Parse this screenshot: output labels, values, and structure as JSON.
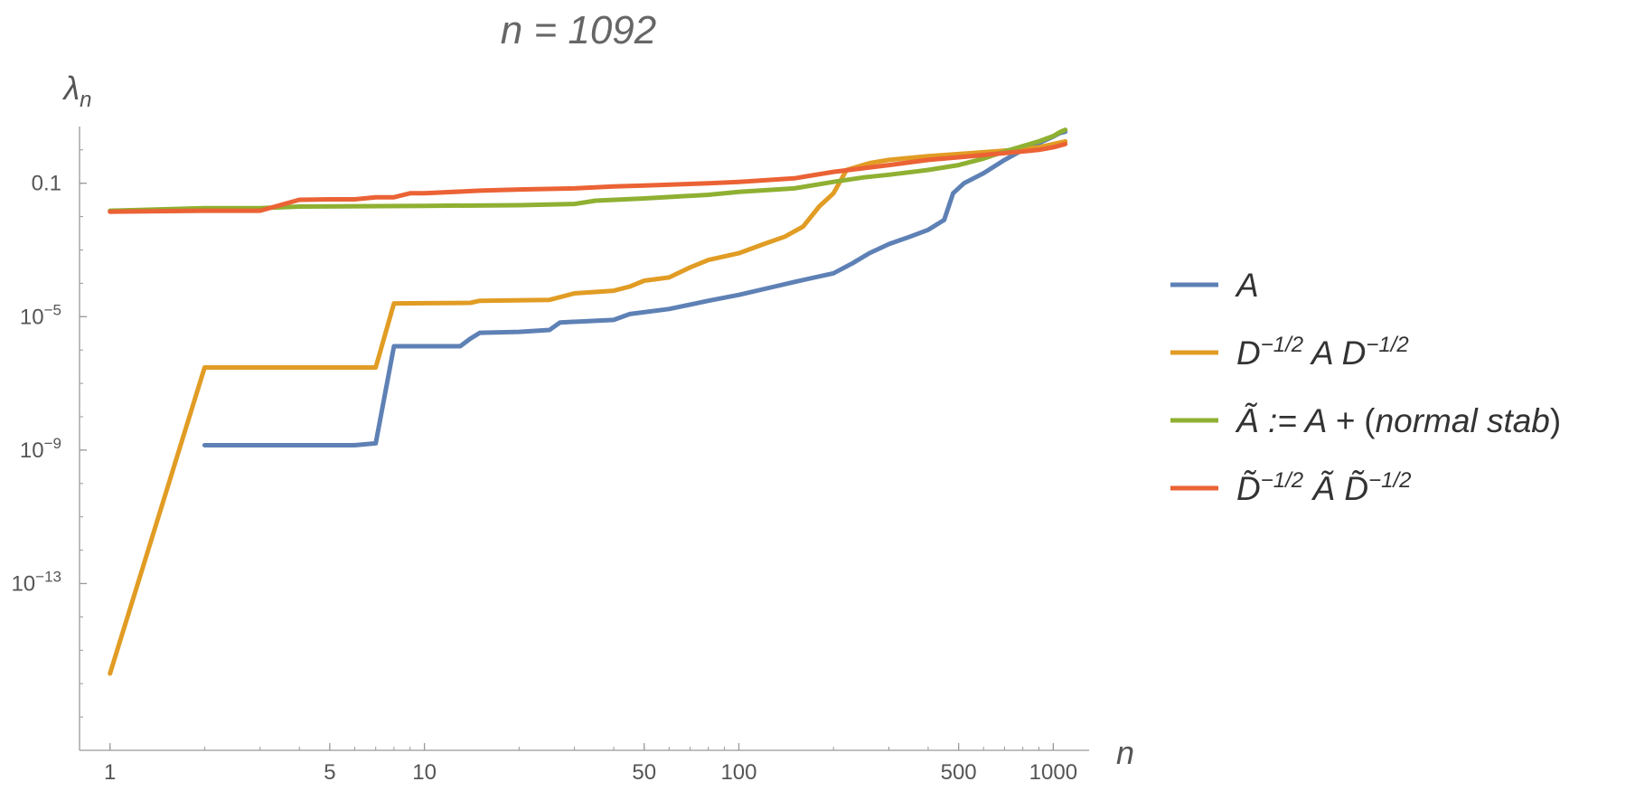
{
  "chart_data": {
    "type": "line",
    "title": "n = 1092",
    "xlabel": "n",
    "ylabel": "λn",
    "x_scale": "log",
    "y_scale": "log",
    "xlim": [
      0.8,
      1300
    ],
    "ylim": [
      1e-18,
      5
    ],
    "x_ticks": [
      {
        "value": 1,
        "label": "1"
      },
      {
        "value": 5,
        "label": "5"
      },
      {
        "value": 10,
        "label": "10"
      },
      {
        "value": 50,
        "label": "50"
      },
      {
        "value": 100,
        "label": "100"
      },
      {
        "value": 500,
        "label": "500"
      },
      {
        "value": 1000,
        "label": "1000"
      }
    ],
    "y_ticks": [
      {
        "value": 0.1,
        "label": "0.1"
      },
      {
        "value": 1e-05,
        "label": "10",
        "sup": "−5"
      },
      {
        "value": 1e-09,
        "label": "10",
        "sup": "−9"
      },
      {
        "value": 1e-13,
        "label": "10",
        "sup": "−13"
      }
    ],
    "grid": false,
    "legend_position": "right",
    "series": [
      {
        "name": "A",
        "legend_parts": [
          {
            "t": "A"
          }
        ],
        "color": "#5e81b5",
        "points": [
          [
            2,
            1.4e-09
          ],
          [
            6,
            1.4e-09
          ],
          [
            7,
            1.6e-09
          ],
          [
            8,
            1.3e-06
          ],
          [
            13,
            1.3e-06
          ],
          [
            14,
            2.2e-06
          ],
          [
            15,
            3.3e-06
          ],
          [
            20,
            3.5e-06
          ],
          [
            25,
            4e-06
          ],
          [
            27,
            6.7e-06
          ],
          [
            40,
            8e-06
          ],
          [
            45,
            1.2e-05
          ],
          [
            60,
            1.7e-05
          ],
          [
            80,
            3e-05
          ],
          [
            100,
            4.5e-05
          ],
          [
            130,
            8e-05
          ],
          [
            150,
            0.00011
          ],
          [
            200,
            0.0002
          ],
          [
            230,
            0.0004
          ],
          [
            260,
            0.0008
          ],
          [
            300,
            0.0015
          ],
          [
            350,
            0.0025
          ],
          [
            400,
            0.004
          ],
          [
            450,
            0.008
          ],
          [
            480,
            0.05
          ],
          [
            520,
            0.1
          ],
          [
            600,
            0.2
          ],
          [
            700,
            0.5
          ],
          [
            800,
            1.0
          ],
          [
            900,
            1.6
          ],
          [
            1000,
            2.5
          ],
          [
            1050,
            3.2
          ],
          [
            1092,
            3.5
          ]
        ]
      },
      {
        "name": "D^{-1/2} A D^{-1/2}",
        "legend_parts": [
          {
            "t": "D"
          },
          {
            "t": "−1/2",
            "sup": true
          },
          {
            "t": " A D"
          },
          {
            "t": "−1/2",
            "sup": true
          }
        ],
        "color": "#e19c24",
        "points": [
          [
            1,
            2e-16
          ],
          [
            2,
            3e-07
          ],
          [
            7,
            3e-07
          ],
          [
            8,
            2.5e-05
          ],
          [
            14,
            2.6e-05
          ],
          [
            15,
            3e-05
          ],
          [
            25,
            3.2e-05
          ],
          [
            30,
            5e-05
          ],
          [
            40,
            6e-05
          ],
          [
            45,
            8e-05
          ],
          [
            50,
            0.00012
          ],
          [
            60,
            0.00015
          ],
          [
            70,
            0.0003
          ],
          [
            80,
            0.0005
          ],
          [
            100,
            0.0008
          ],
          [
            120,
            0.0015
          ],
          [
            140,
            0.0025
          ],
          [
            160,
            0.005
          ],
          [
            180,
            0.02
          ],
          [
            200,
            0.05
          ],
          [
            220,
            0.25
          ],
          [
            260,
            0.4
          ],
          [
            300,
            0.5
          ],
          [
            400,
            0.65
          ],
          [
            500,
            0.75
          ],
          [
            600,
            0.85
          ],
          [
            700,
            0.95
          ],
          [
            800,
            1.05
          ],
          [
            900,
            1.2
          ],
          [
            1000,
            1.5
          ],
          [
            1092,
            1.8
          ]
        ]
      },
      {
        "name": "Ã := A + (normal stab)",
        "legend_parts": [
          {
            "t": "Ã := A + "
          },
          {
            "t": "(",
            "roman": true
          },
          {
            "t": "normal stab"
          },
          {
            "t": ")",
            "roman": true
          }
        ],
        "color": "#8fb032",
        "points": [
          [
            1,
            0.015
          ],
          [
            2,
            0.018
          ],
          [
            3,
            0.018
          ],
          [
            4,
            0.02
          ],
          [
            10,
            0.021
          ],
          [
            20,
            0.022
          ],
          [
            30,
            0.024
          ],
          [
            35,
            0.03
          ],
          [
            50,
            0.035
          ],
          [
            80,
            0.045
          ],
          [
            100,
            0.055
          ],
          [
            150,
            0.07
          ],
          [
            200,
            0.11
          ],
          [
            250,
            0.15
          ],
          [
            300,
            0.18
          ],
          [
            400,
            0.25
          ],
          [
            500,
            0.35
          ],
          [
            600,
            0.55
          ],
          [
            700,
            0.9
          ],
          [
            800,
            1.3
          ],
          [
            900,
            1.8
          ],
          [
            1000,
            2.6
          ],
          [
            1050,
            3.4
          ],
          [
            1092,
            4.0
          ]
        ]
      },
      {
        "name": "D̃^{-1/2} Ã D̃^{-1/2}",
        "legend_parts": [
          {
            "t": "D̃"
          },
          {
            "t": "−1/2",
            "sup": true
          },
          {
            "t": " Ã D̃"
          },
          {
            "t": "−1/2",
            "sup": true
          }
        ],
        "color": "#eb6235",
        "points": [
          [
            1,
            0.014
          ],
          [
            2,
            0.015
          ],
          [
            3,
            0.015
          ],
          [
            4,
            0.032
          ],
          [
            5,
            0.033
          ],
          [
            6,
            0.033
          ],
          [
            7,
            0.038
          ],
          [
            8,
            0.038
          ],
          [
            9,
            0.05
          ],
          [
            10,
            0.05
          ],
          [
            15,
            0.06
          ],
          [
            20,
            0.065
          ],
          [
            30,
            0.07
          ],
          [
            40,
            0.08
          ],
          [
            50,
            0.085
          ],
          [
            80,
            0.1
          ],
          [
            100,
            0.11
          ],
          [
            150,
            0.14
          ],
          [
            200,
            0.22
          ],
          [
            300,
            0.35
          ],
          [
            400,
            0.5
          ],
          [
            500,
            0.6
          ],
          [
            600,
            0.7
          ],
          [
            700,
            0.8
          ],
          [
            800,
            0.9
          ],
          [
            900,
            1.0
          ],
          [
            1000,
            1.2
          ],
          [
            1092,
            1.5
          ]
        ]
      }
    ]
  }
}
